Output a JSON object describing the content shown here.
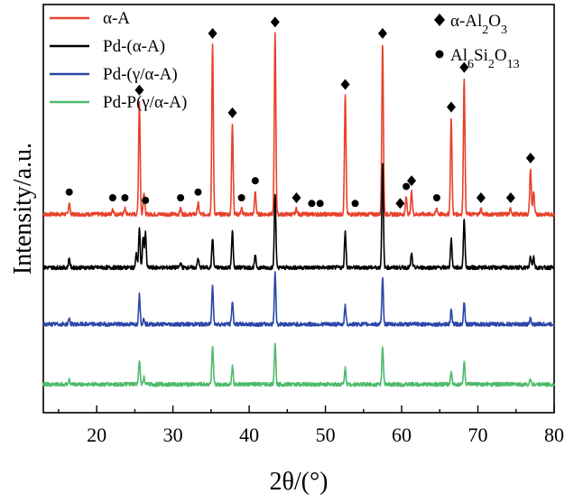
{
  "chart_data": {
    "type": "line",
    "xlabel": "2θ/(°)",
    "ylabel": "Intensity/a.u.",
    "xlim": [
      13,
      80
    ],
    "x_ticks": [
      20,
      30,
      40,
      50,
      60,
      70,
      80
    ],
    "y_ticks_shown": false,
    "legend_position": "top-left",
    "series": [
      {
        "name": "α-A",
        "color": "#e8412b",
        "baseline": 0.75,
        "peaks": [
          {
            "x": 16.4,
            "h": 0.1
          },
          {
            "x": 22.1,
            "h": 0.05
          },
          {
            "x": 23.7,
            "h": 0.05
          },
          {
            "x": 25.6,
            "h": 1.0
          },
          {
            "x": 26.2,
            "h": 0.2
          },
          {
            "x": 31.0,
            "h": 0.05
          },
          {
            "x": 33.3,
            "h": 0.1
          },
          {
            "x": 35.2,
            "h": 1.5
          },
          {
            "x": 37.8,
            "h": 0.8
          },
          {
            "x": 39.0,
            "h": 0.05
          },
          {
            "x": 40.8,
            "h": 0.2
          },
          {
            "x": 43.4,
            "h": 1.6
          },
          {
            "x": 46.2,
            "h": 0.05
          },
          {
            "x": 52.6,
            "h": 1.05
          },
          {
            "x": 57.5,
            "h": 1.5
          },
          {
            "x": 60.6,
            "h": 0.15
          },
          {
            "x": 61.3,
            "h": 0.2
          },
          {
            "x": 64.6,
            "h": 0.05
          },
          {
            "x": 66.5,
            "h": 0.85
          },
          {
            "x": 68.2,
            "h": 1.2
          },
          {
            "x": 70.4,
            "h": 0.05
          },
          {
            "x": 74.3,
            "h": 0.05
          },
          {
            "x": 76.9,
            "h": 0.4
          },
          {
            "x": 77.3,
            "h": 0.2
          }
        ]
      },
      {
        "name": "Pd-(α-A)",
        "color": "#000000",
        "baseline": 0.28,
        "peaks": [
          {
            "x": 16.4,
            "h": 0.08
          },
          {
            "x": 25.2,
            "h": 0.12
          },
          {
            "x": 25.6,
            "h": 0.34
          },
          {
            "x": 26.1,
            "h": 0.28
          },
          {
            "x": 26.4,
            "h": 0.3
          },
          {
            "x": 31.0,
            "h": 0.04
          },
          {
            "x": 33.3,
            "h": 0.08
          },
          {
            "x": 35.2,
            "h": 0.26
          },
          {
            "x": 37.8,
            "h": 0.32
          },
          {
            "x": 40.8,
            "h": 0.1
          },
          {
            "x": 43.4,
            "h": 0.66
          },
          {
            "x": 52.6,
            "h": 0.32
          },
          {
            "x": 57.5,
            "h": 0.92
          },
          {
            "x": 61.3,
            "h": 0.12
          },
          {
            "x": 66.5,
            "h": 0.26
          },
          {
            "x": 68.2,
            "h": 0.44
          },
          {
            "x": 76.9,
            "h": 0.1
          },
          {
            "x": 77.3,
            "h": 0.1
          }
        ]
      },
      {
        "name": "Pd-(γ/α-A)",
        "color": "#2a47a8",
        "baseline": -0.22,
        "peaks": [
          {
            "x": 16.4,
            "h": 0.05
          },
          {
            "x": 25.6,
            "h": 0.26
          },
          {
            "x": 26.2,
            "h": 0.05
          },
          {
            "x": 35.2,
            "h": 0.34
          },
          {
            "x": 37.8,
            "h": 0.2
          },
          {
            "x": 43.4,
            "h": 0.46
          },
          {
            "x": 52.6,
            "h": 0.16
          },
          {
            "x": 57.5,
            "h": 0.4
          },
          {
            "x": 66.5,
            "h": 0.12
          },
          {
            "x": 68.2,
            "h": 0.2
          },
          {
            "x": 76.9,
            "h": 0.05
          }
        ]
      },
      {
        "name": "Pd-P(γ/α-A)",
        "color": "#4dbb6a",
        "baseline": -0.75,
        "peaks": [
          {
            "x": 16.4,
            "h": 0.04
          },
          {
            "x": 25.6,
            "h": 0.22
          },
          {
            "x": 26.2,
            "h": 0.06
          },
          {
            "x": 35.2,
            "h": 0.32
          },
          {
            "x": 37.8,
            "h": 0.16
          },
          {
            "x": 43.4,
            "h": 0.36
          },
          {
            "x": 52.6,
            "h": 0.14
          },
          {
            "x": 57.5,
            "h": 0.32
          },
          {
            "x": 66.5,
            "h": 0.1
          },
          {
            "x": 68.2,
            "h": 0.2
          },
          {
            "x": 76.9,
            "h": 0.04
          }
        ]
      }
    ],
    "phase_markers": [
      {
        "phase": "α-Al2O3",
        "label_parts": [
          "α-Al",
          "2",
          "O",
          "3"
        ],
        "symbol": "diamond",
        "positions": [
          25.6,
          35.2,
          37.8,
          43.4,
          46.2,
          52.6,
          57.5,
          59.8,
          61.3,
          66.5,
          68.2,
          70.4,
          74.3,
          76.9
        ]
      },
      {
        "phase": "Al6Si2O13",
        "label_parts": [
          "Al",
          "6",
          "Si",
          "2",
          "O",
          "13"
        ],
        "symbol": "circle",
        "positions": [
          16.4,
          22.1,
          23.7,
          26.4,
          31.0,
          33.3,
          39.0,
          40.8,
          48.2,
          49.3,
          53.9,
          60.6,
          64.6
        ]
      }
    ]
  }
}
